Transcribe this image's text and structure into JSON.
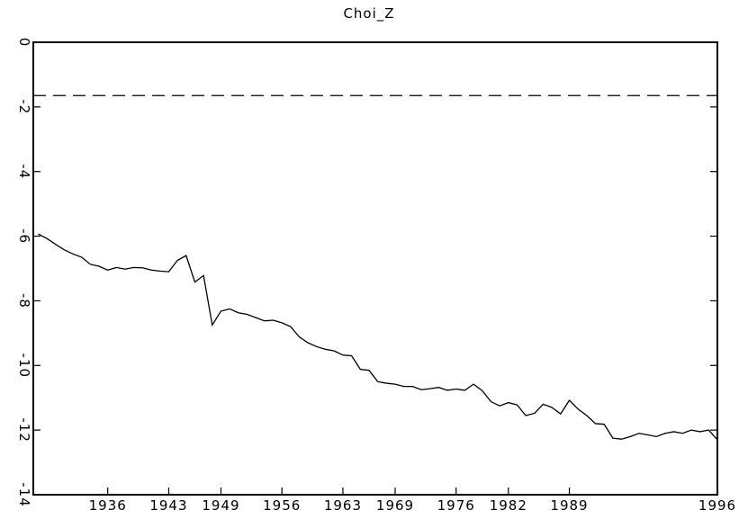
{
  "chart_data": {
    "type": "line",
    "title": "Choi_Z",
    "categories": [
      null,
      null,
      null,
      null,
      null,
      null,
      null,
      null,
      "1936",
      null,
      null,
      null,
      null,
      null,
      null,
      "1943",
      null,
      null,
      null,
      null,
      null,
      "1949",
      null,
      null,
      null,
      null,
      null,
      null,
      "1956",
      null,
      null,
      null,
      null,
      null,
      null,
      "1963",
      null,
      null,
      null,
      null,
      null,
      "1969",
      null,
      null,
      null,
      null,
      null,
      null,
      "1976",
      null,
      null,
      null,
      null,
      null,
      "1982",
      null,
      null,
      null,
      null,
      null,
      null,
      "1989",
      null,
      null,
      null,
      null,
      null,
      null,
      null,
      null,
      null,
      null,
      null,
      null,
      null,
      null,
      null,
      null,
      "1996"
    ],
    "values": [
      -5.93,
      -6.07,
      -6.25,
      -6.42,
      -6.55,
      -6.65,
      -6.87,
      -6.93,
      -7.05,
      -6.97,
      -7.02,
      -6.97,
      -6.98,
      -7.05,
      -7.08,
      -7.1,
      -6.75,
      -6.6,
      -7.42,
      -7.22,
      -8.75,
      -8.32,
      -8.25,
      -8.37,
      -8.42,
      -8.52,
      -8.62,
      -8.6,
      -8.68,
      -8.8,
      -9.12,
      -9.3,
      -9.42,
      -9.5,
      -9.55,
      -9.68,
      -9.7,
      -10.12,
      -10.15,
      -10.5,
      -10.55,
      -10.58,
      -10.65,
      -10.65,
      -10.75,
      -10.72,
      -10.68,
      -10.77,
      -10.73,
      -10.77,
      -10.58,
      -10.78,
      -11.12,
      -11.25,
      -11.15,
      -11.22,
      -11.55,
      -11.48,
      -11.2,
      -11.3,
      -11.5,
      -11.08,
      -11.35,
      -11.55,
      -11.8,
      -11.82,
      -12.25,
      -12.28,
      -12.2,
      -12.1,
      -12.15,
      -12.2,
      -12.1,
      -12.05,
      -12.1,
      -12.0,
      -12.05,
      -12.0,
      -12.3
    ],
    "color": "#000000",
    "reference_line": -1.65,
    "ylim": [
      -14,
      0
    ],
    "yticks": [
      0,
      -2,
      -4,
      -6,
      -8,
      -10,
      -12,
      -14
    ],
    "grid": false
  }
}
